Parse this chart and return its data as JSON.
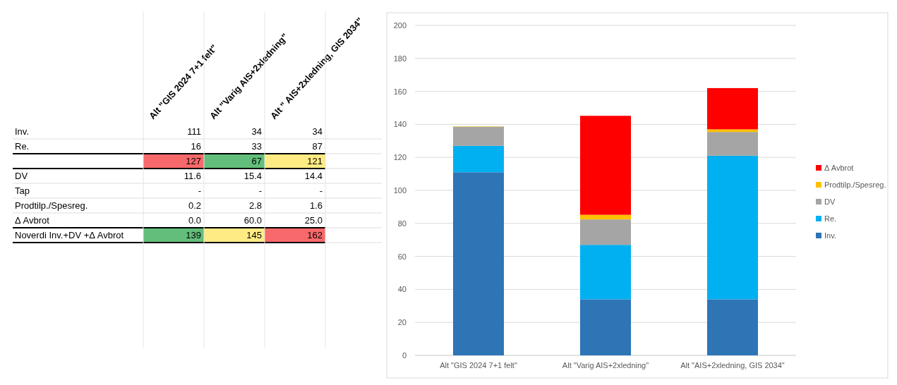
{
  "chart_data": [
    {
      "type": "other",
      "categories": [
        "Alt \"GIS 2024 7+1 felt\"",
        "Alt \"Varig AIS+2xledning\"",
        "Alt \" AIS+2xledning, GIS 2034\""
      ],
      "y_categories": [
        "Inv.",
        "Re.",
        null,
        "DV",
        "Tap",
        "Prodtilp./Spesreg.",
        "Δ Avbrot",
        "Noverdi Inv.+DV +Δ Avbrot"
      ],
      "cell_labels": [
        [
          "111",
          "34",
          "34"
        ],
        [
          "16",
          "33",
          "87"
        ],
        [
          "127",
          "67",
          "121"
        ],
        [
          "11.6",
          "15.4",
          "14.4"
        ],
        [
          "-",
          "-",
          "-"
        ],
        [
          "0.2",
          "2.8",
          "1.6"
        ],
        [
          "0.0",
          "60.0",
          "25.0"
        ],
        [
          "139",
          "145",
          "162"
        ]
      ],
      "colors": [
        [
          null,
          null,
          null
        ],
        [
          null,
          null,
          null
        ],
        [
          "#f8696b",
          "#63be7b",
          "#ffeb84"
        ],
        [
          null,
          null,
          null
        ],
        [
          null,
          null,
          null
        ],
        [
          null,
          null,
          null
        ],
        [
          null,
          null,
          null
        ],
        [
          "#63be7b",
          "#ffeb84",
          "#f8696b"
        ]
      ]
    },
    {
      "type": "bar",
      "stacked": true,
      "categories": [
        "Alt \"GIS 2024 7+1 felt\"",
        "Alt \"Varig AIS+2xledning\"",
        "Alt \"AIS+2xledning, GIS 2034\""
      ],
      "series": [
        {
          "name": "Inv.",
          "color": "#2e75b6",
          "values": [
            111,
            34,
            34
          ]
        },
        {
          "name": "Re.",
          "color": "#00b0f0",
          "values": [
            16,
            33,
            87
          ]
        },
        {
          "name": "DV",
          "color": "#a5a5a5",
          "values": [
            11.6,
            15.4,
            14.4
          ]
        },
        {
          "name": "Prodtilp./Spesreg.",
          "color": "#ffc000",
          "values": [
            0.2,
            2.8,
            1.6
          ]
        },
        {
          "name": "Δ Avbrot",
          "color": "#ff0000",
          "values": [
            0,
            60,
            25
          ]
        }
      ],
      "ylim": [
        0,
        200
      ],
      "yticks": [
        0,
        20,
        40,
        60,
        80,
        100,
        120,
        140,
        160,
        180,
        200
      ],
      "grid": "y",
      "legend": "right"
    }
  ]
}
